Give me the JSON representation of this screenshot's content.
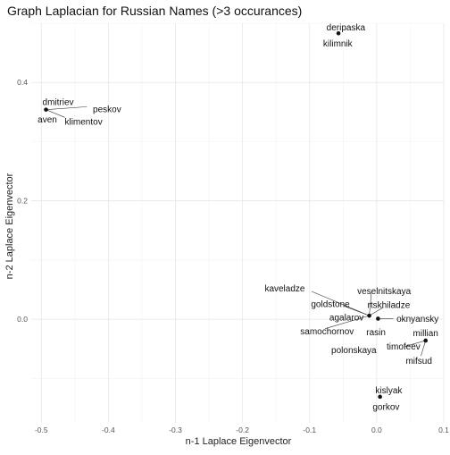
{
  "chart_data": {
    "type": "scatter",
    "title": "Graph Laplacian for Russian Names (>3 occurances)",
    "xlabel": "n-1 Laplace Eigenvector",
    "ylabel": "n-2 Laplace Eigenvector",
    "xlim": [
      -0.515,
      0.1
    ],
    "ylim": [
      -0.175,
      0.5
    ],
    "xticks": [
      -0.5,
      -0.4,
      -0.3,
      -0.2,
      -0.1,
      0.0,
      0.1
    ],
    "xtick_labels": [
      "-0.5",
      "-0.4",
      "-0.3",
      "-0.2",
      "-0.1",
      "0.0",
      "0.1"
    ],
    "yticks": [
      0.0,
      0.2,
      0.4
    ],
    "ytick_labels": [
      "0.0",
      "0.2",
      "0.4"
    ],
    "grid": true,
    "legend": "none",
    "points": [
      {
        "x": -0.057,
        "y": 0.483
      },
      {
        "x": -0.493,
        "y": 0.354
      },
      {
        "x": -0.011,
        "y": 0.006
      },
      {
        "x": 0.002,
        "y": 0.001
      },
      {
        "x": 0.073,
        "y": -0.036
      },
      {
        "x": 0.005,
        "y": -0.131
      }
    ],
    "labels": [
      {
        "text": "deripaska",
        "x": -0.046,
        "y": 0.493
      },
      {
        "text": "kilimnik",
        "x": -0.058,
        "y": 0.466
      },
      {
        "text": "dmitriev",
        "x": -0.475,
        "y": 0.367
      },
      {
        "text": "peskov",
        "x": -0.402,
        "y": 0.355
      },
      {
        "text": "aven",
        "x": -0.491,
        "y": 0.338
      },
      {
        "text": "klimentov",
        "x": -0.437,
        "y": 0.334
      },
      {
        "text": "kaveladze",
        "x": -0.137,
        "y": 0.052
      },
      {
        "text": "veselnitskaya",
        "x": 0.011,
        "y": 0.048
      },
      {
        "text": "goldstone",
        "x": -0.069,
        "y": 0.026
      },
      {
        "text": "rtskhiladze",
        "x": 0.018,
        "y": 0.024
      },
      {
        "text": "agalarov",
        "x": -0.045,
        "y": 0.003
      },
      {
        "text": "oknyansky",
        "x": 0.061,
        "y": 0.001
      },
      {
        "text": "samochornov",
        "x": -0.074,
        "y": -0.02
      },
      {
        "text": "rasin",
        "x": -0.001,
        "y": -0.022
      },
      {
        "text": "millian",
        "x": 0.073,
        "y": -0.023
      },
      {
        "text": "timofeev",
        "x": 0.04,
        "y": -0.046
      },
      {
        "text": "polonskaya",
        "x": -0.034,
        "y": -0.052
      },
      {
        "text": "mifsud",
        "x": 0.063,
        "y": -0.07
      },
      {
        "text": "kislyak",
        "x": 0.018,
        "y": -0.12
      },
      {
        "text": "gorkov",
        "x": 0.014,
        "y": -0.148
      }
    ],
    "leader_lines": [
      {
        "from": [
          -0.493,
          0.354
        ],
        "to": [
          -0.432,
          0.359
        ]
      },
      {
        "from": [
          -0.493,
          0.354
        ],
        "to": [
          -0.465,
          0.341
        ]
      },
      {
        "from": [
          -0.011,
          0.006
        ],
        "to": [
          -0.097,
          0.047
        ]
      },
      {
        "from": [
          -0.011,
          0.006
        ],
        "to": [
          -0.008,
          0.044
        ]
      },
      {
        "from": [
          -0.011,
          0.006
        ],
        "to": [
          -0.048,
          0.022
        ]
      },
      {
        "from": [
          -0.011,
          0.006
        ],
        "to": [
          0.01,
          0.02
        ]
      },
      {
        "from": [
          -0.011,
          0.006
        ],
        "to": [
          -0.077,
          -0.016
        ]
      },
      {
        "from": [
          0.002,
          0.001
        ],
        "to": [
          0.025,
          0.001
        ]
      },
      {
        "from": [
          0.073,
          -0.036
        ],
        "to": [
          0.042,
          -0.046
        ]
      },
      {
        "from": [
          0.073,
          -0.036
        ],
        "to": [
          0.066,
          -0.062
        ]
      }
    ]
  }
}
